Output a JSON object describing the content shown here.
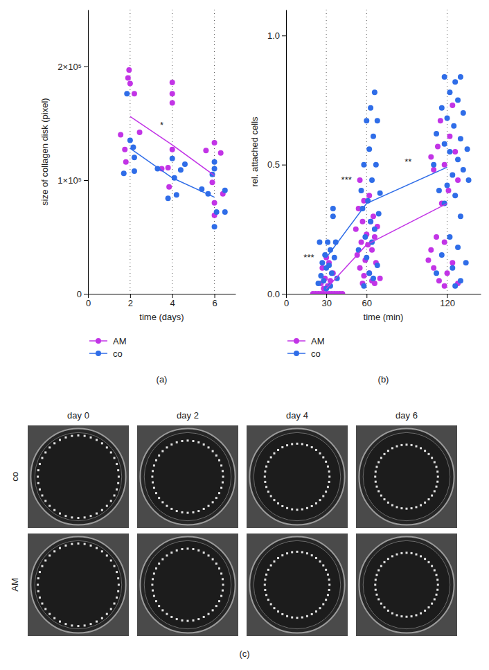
{
  "chart_data": [
    {
      "type": "scatter",
      "panel_label": "(a)",
      "x_label": "time (days)",
      "y_label": "size of collagen disk (pixel)",
      "xlim": [
        0,
        7
      ],
      "xticks": [
        0,
        2,
        4,
        6
      ],
      "ylim": [
        0,
        250000
      ],
      "yticks": [
        0,
        {
          "value": 100000,
          "label": "1×10⁵"
        },
        {
          "value": 200000,
          "label": "2×10⁵"
        }
      ],
      "grid": "x",
      "legend": "bottom",
      "marker": "circle",
      "annotations": [
        {
          "text": "*",
          "x": 3.5,
          "y": 146000
        }
      ],
      "series": [
        {
          "name": "AM",
          "color": "#c234e6",
          "x": [
            1.55,
            1.75,
            1.8,
            1.95,
            1.9,
            2.0,
            2.2,
            2.45,
            3.5,
            3.8,
            3.85,
            4.0,
            4.0,
            4.0,
            4.0,
            5.6,
            5.9,
            6.0,
            6.0,
            6.0,
            6.3,
            6.4
          ],
          "values": [
            140000,
            127000,
            116000,
            197000,
            190000,
            185000,
            176000,
            142000,
            110000,
            111000,
            94000,
            186000,
            168000,
            127000,
            176000,
            126000,
            98000,
            133000,
            80000,
            69000,
            124000,
            88000
          ],
          "means": {
            "x": [
              2,
              4,
              6
            ],
            "values": [
              156000,
              131000,
              104000
            ]
          }
        },
        {
          "name": "co",
          "color": "#2f6de8",
          "x": [
            1.7,
            1.85,
            2.0,
            2.15,
            2.2,
            2.2,
            3.3,
            3.8,
            4.0,
            4.1,
            4.2,
            4.4,
            4.6,
            5.4,
            5.7,
            5.9,
            6.0,
            6.0,
            6.1,
            6.5,
            6.5,
            6.0
          ],
          "values": [
            106000,
            176000,
            135000,
            129000,
            108000,
            120000,
            110000,
            84000,
            119000,
            102000,
            87000,
            109000,
            114000,
            92000,
            88000,
            105000,
            116000,
            59000,
            72000,
            91000,
            72000,
            110000
          ],
          "means": {
            "x": [
              2,
              4,
              6
            ],
            "values": [
              128000,
              102000,
              85000
            ]
          }
        }
      ]
    },
    {
      "type": "scatter",
      "panel_label": "(b)",
      "x_label": "time (min)",
      "y_label": "rel. attached cells",
      "xlim": [
        0,
        145
      ],
      "xticks": [
        0,
        30,
        60,
        120
      ],
      "ylim": [
        0,
        1.1
      ],
      "yticks": [
        {
          "value": 0,
          "label": "0.0"
        },
        0.5,
        {
          "value": 1,
          "label": "1.0"
        }
      ],
      "grid": "x",
      "legend": "bottom",
      "marker": "circle",
      "annotations": [
        {
          "text": "***",
          "x": 17,
          "y": 0.13
        },
        {
          "text": "***",
          "x": 45,
          "y": 0.43
        },
        {
          "text": "**",
          "x": 91,
          "y": 0.5
        }
      ],
      "series": [
        {
          "name": "AM",
          "color": "#c234e6",
          "x": [
            20,
            22,
            24,
            26,
            28,
            30,
            32,
            34,
            36,
            38,
            40,
            42,
            28,
            31,
            26,
            33,
            29,
            35,
            27,
            32,
            30,
            55,
            62,
            58,
            54,
            65,
            57,
            63,
            68,
            52,
            60,
            66,
            56,
            61,
            64,
            53,
            59,
            67,
            55,
            62,
            58,
            70,
            64,
            57,
            66,
            124,
            115,
            122,
            113,
            126,
            108,
            118,
            110,
            128,
            121,
            116,
            112,
            118,
            108,
            106,
            124,
            110,
            120,
            114,
            128,
            118
          ],
          "values": [
            0,
            0,
            0,
            0,
            0,
            0,
            0,
            0,
            0,
            0,
            0,
            0,
            0.02,
            0.03,
            0.04,
            0.05,
            0.06,
            0.08,
            0.1,
            0.12,
            0.14,
            0.44,
            0.38,
            0.36,
            0.33,
            0.3,
            0.28,
            0.28,
            0.26,
            0.25,
            0.23,
            0.22,
            0.2,
            0.19,
            0.17,
            0.15,
            0.13,
            0.12,
            0.1,
            0.08,
            0.07,
            0.06,
            0.05,
            0.04,
            0.04,
            0.73,
            0.67,
            0.61,
            0.57,
            0.55,
            0.53,
            0.5,
            0.48,
            0.44,
            0.4,
            0.35,
            0.22,
            0.2,
            0.17,
            0.13,
            0.12,
            0.1,
            0.08,
            0.05,
            0.04,
            0.03
          ],
          "means": {
            "x": [
              30,
              60,
              120
            ],
            "values": [
              0.02,
              0.19,
              0.35
            ]
          }
        },
        {
          "name": "co",
          "color": "#2f6de8",
          "x": [
            35,
            35,
            25,
            31,
            37,
            33,
            29,
            36,
            27,
            32,
            30,
            34,
            26,
            38,
            28,
            24,
            33,
            30,
            66,
            63,
            60,
            68,
            65,
            62,
            58,
            67,
            64,
            56,
            70,
            61,
            57,
            69,
            63,
            66,
            59,
            64,
            54,
            60,
            68,
            62,
            65,
            58,
            118,
            130,
            126,
            122,
            128,
            116,
            132,
            120,
            125,
            112,
            130,
            118,
            135,
            122,
            128,
            110,
            132,
            124,
            136,
            120,
            114,
            126,
            118,
            130,
            122,
            128,
            116,
            134,
            124,
            112,
            130,
            126
          ],
          "values": [
            0.33,
            0.3,
            0.2,
            0.2,
            0.2,
            0.17,
            0.15,
            0.14,
            0.12,
            0.11,
            0.1,
            0.08,
            0.07,
            0.06,
            0.05,
            0.04,
            0.03,
            0.02,
            0.78,
            0.72,
            0.67,
            0.67,
            0.61,
            0.56,
            0.5,
            0.5,
            0.44,
            0.4,
            0.39,
            0.36,
            0.33,
            0.31,
            0.28,
            0.25,
            0.22,
            0.2,
            0.17,
            0.14,
            0.11,
            0.08,
            0.06,
            0.03,
            0.84,
            0.84,
            0.82,
            0.78,
            0.75,
            0.72,
            0.7,
            0.68,
            0.65,
            0.62,
            0.6,
            0.58,
            0.56,
            0.55,
            0.52,
            0.5,
            0.48,
            0.46,
            0.44,
            0.42,
            0.4,
            0.38,
            0.35,
            0.3,
            0.22,
            0.18,
            0.15,
            0.12,
            0.1,
            0.08,
            0.05,
            0.03
          ],
          "means": {
            "x": [
              30,
              60,
              120
            ],
            "values": [
              0.14,
              0.35,
              0.49
            ]
          }
        }
      ]
    }
  ],
  "image_panel": {
    "panel_label": "(c)",
    "columns": [
      "day 0",
      "day 2",
      "day 4",
      "day 6"
    ],
    "rows": [
      "co",
      "AM"
    ]
  }
}
